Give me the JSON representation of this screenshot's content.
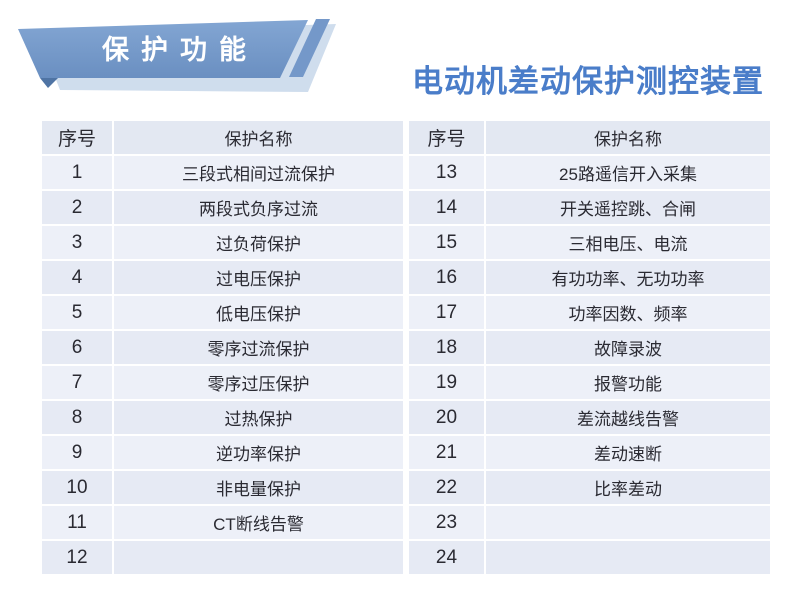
{
  "badge": {
    "label": "保护功能"
  },
  "title": "电动机差动保护测控装置",
  "colors": {
    "title_blue": "#4a7dc9",
    "badge_blue_top": "#83a6d3",
    "badge_blue_bottom": "#6a8fc1",
    "badge_shadow": "#cfdded",
    "badge_fold": "#4f74a4",
    "header_bg": "#e3e8f2",
    "row_light": "#edf0f8",
    "row_dark": "#e6eaf4",
    "text_dark": "#2a2a32"
  },
  "tables": [
    {
      "name": "left",
      "headers": [
        "序号",
        "保护名称"
      ],
      "rows": [
        [
          "1",
          "三段式相间过流保护"
        ],
        [
          "2",
          "两段式负序过流"
        ],
        [
          "3",
          "过负荷保护"
        ],
        [
          "4",
          "过电压保护"
        ],
        [
          "5",
          "低电压保护"
        ],
        [
          "6",
          "零序过流保护"
        ],
        [
          "7",
          "零序过压保护"
        ],
        [
          "8",
          "过热保护"
        ],
        [
          "9",
          "逆功率保护"
        ],
        [
          "10",
          "非电量保护"
        ],
        [
          "11",
          "CT断线告警"
        ],
        [
          "12",
          ""
        ]
      ]
    },
    {
      "name": "right",
      "headers": [
        "序号",
        "保护名称"
      ],
      "rows": [
        [
          "13",
          "25路遥信开入采集"
        ],
        [
          "14",
          "开关遥控跳、合闸"
        ],
        [
          "15",
          "三相电压、电流"
        ],
        [
          "16",
          "有功功率、无功功率"
        ],
        [
          "17",
          "功率因数、频率"
        ],
        [
          "18",
          "故障录波"
        ],
        [
          "19",
          "报警功能"
        ],
        [
          "20",
          "差流越线告警"
        ],
        [
          "21",
          "差动速断"
        ],
        [
          "22",
          "比率差动"
        ],
        [
          "23",
          ""
        ],
        [
          "24",
          ""
        ]
      ]
    }
  ]
}
